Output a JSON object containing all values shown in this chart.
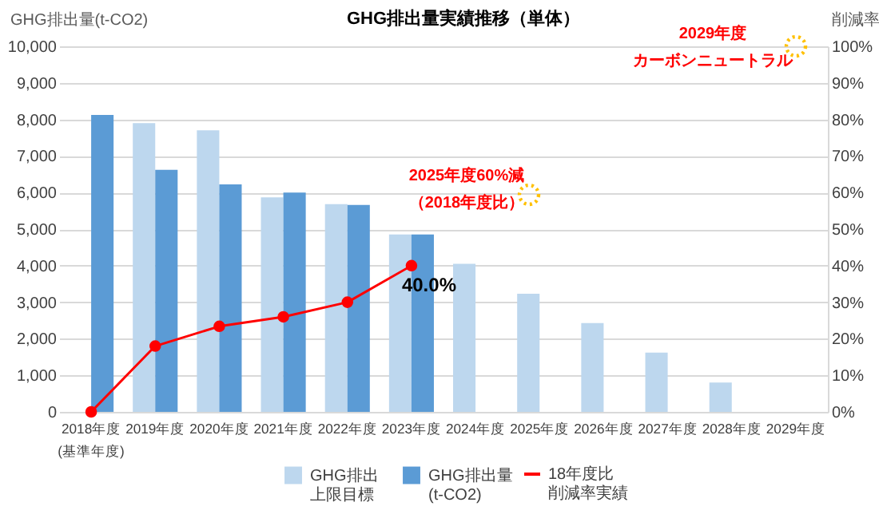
{
  "chart_data": {
    "type": "bar",
    "title": "GHG排出量実績推移（単体）",
    "categories": [
      "2018年度(基準年度)",
      "2019年度",
      "2020年度",
      "2021年度",
      "2022年度",
      "2023年度",
      "2024年度",
      "2025年度",
      "2026年度",
      "2027年度",
      "2028年度",
      "2029年度"
    ],
    "ylabel": "GHG排出量(t-CO2)",
    "y2label": "削減率",
    "series": [
      {
        "name": "GHG排出上限目標",
        "color": "#bdd7ee",
        "values": [
          null,
          7900,
          7700,
          5870,
          5680,
          4850,
          4050,
          3230,
          2430,
          1620,
          800,
          null
        ]
      },
      {
        "name": "GHG排出量(t-CO2)",
        "color": "#5b9bd5",
        "values": [
          8120,
          6620,
          6220,
          6000,
          5660,
          4850,
          null,
          null,
          null,
          null,
          null,
          null
        ]
      },
      {
        "name": "18年度比削減率実績",
        "type": "line",
        "axis": "y2",
        "color": "#ff0000",
        "marker": "circle",
        "values": [
          0,
          18,
          23.4,
          26,
          30,
          40,
          null,
          null,
          null,
          null,
          null,
          null
        ],
        "value_labels": [
          null,
          null,
          null,
          null,
          null,
          "40.0%",
          null,
          null,
          null,
          null,
          null,
          null
        ]
      }
    ],
    "ylim": [
      0,
      10000
    ],
    "yticks": [
      {
        "value": 0,
        "label": "0"
      },
      {
        "value": 1000,
        "label": "1,000"
      },
      {
        "value": 2000,
        "label": "2,000"
      },
      {
        "value": 3000,
        "label": "3,000"
      },
      {
        "value": 4000,
        "label": "4,000"
      },
      {
        "value": 5000,
        "label": "5,000"
      },
      {
        "value": 6000,
        "label": "6,000"
      },
      {
        "value": 7000,
        "label": "7,000"
      },
      {
        "value": 8000,
        "label": "8,000"
      },
      {
        "value": 9000,
        "label": "9,000"
      },
      {
        "value": 10000,
        "label": "10,000"
      }
    ],
    "y2lim": [
      0,
      100
    ],
    "y2ticks": [
      {
        "value": 0,
        "label": "0%"
      },
      {
        "value": 10,
        "label": "10%"
      },
      {
        "value": 20,
        "label": "20%"
      },
      {
        "value": 30,
        "label": "30%"
      },
      {
        "value": 40,
        "label": "40%"
      },
      {
        "value": 50,
        "label": "50%"
      },
      {
        "value": 60,
        "label": "60%"
      },
      {
        "value": 70,
        "label": "70%"
      },
      {
        "value": 80,
        "label": "80%"
      },
      {
        "value": 90,
        "label": "90%"
      },
      {
        "value": 100,
        "label": "100%"
      }
    ],
    "annotations": [
      "2025年度60%減（2018年度比）",
      "2029年度カーボンニュートラル"
    ],
    "grid": "y",
    "legend": "bottom"
  }
}
